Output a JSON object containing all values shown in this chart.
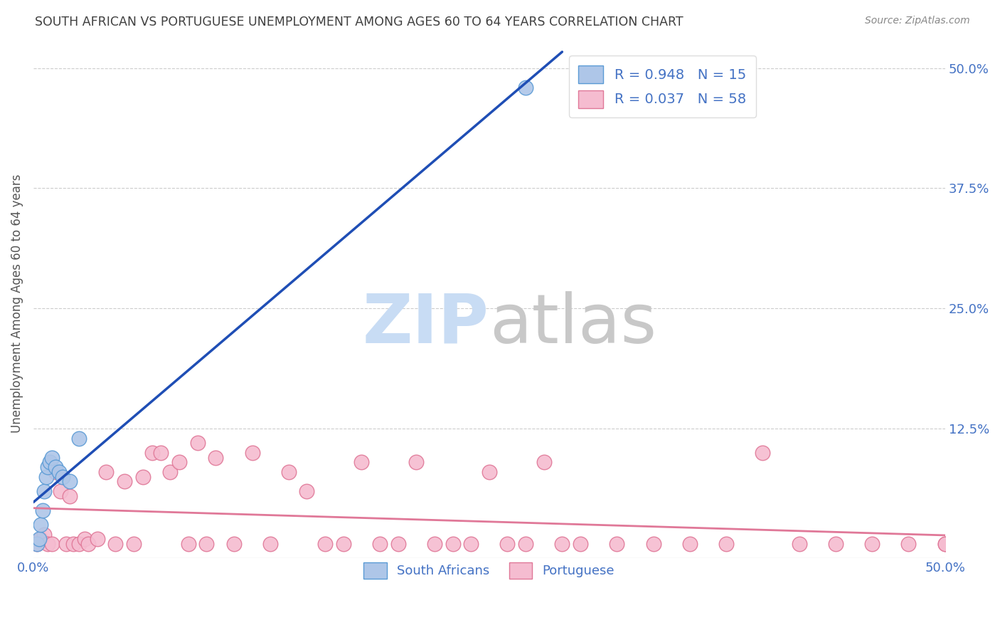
{
  "title": "SOUTH AFRICAN VS PORTUGUESE UNEMPLOYMENT AMONG AGES 60 TO 64 YEARS CORRELATION CHART",
  "source_text": "Source: ZipAtlas.com",
  "ylabel": "Unemployment Among Ages 60 to 64 years",
  "xlim": [
    0.0,
    0.5
  ],
  "ylim": [
    -0.01,
    0.52
  ],
  "xticks": [
    0.0,
    0.5
  ],
  "xticklabels": [
    "0.0%",
    "50.0%"
  ],
  "yticks_right": [
    0.0,
    0.125,
    0.25,
    0.375,
    0.5
  ],
  "yticklabels_right": [
    "",
    "12.5%",
    "25.0%",
    "37.5%",
    "50.0%"
  ],
  "grid_yticks": [
    0.125,
    0.25,
    0.375,
    0.5
  ],
  "south_african_x": [
    0.002,
    0.003,
    0.004,
    0.005,
    0.006,
    0.007,
    0.008,
    0.009,
    0.01,
    0.012,
    0.014,
    0.016,
    0.02,
    0.025,
    0.27
  ],
  "south_african_y": [
    0.005,
    0.01,
    0.025,
    0.04,
    0.06,
    0.075,
    0.085,
    0.09,
    0.095,
    0.085,
    0.08,
    0.075,
    0.07,
    0.115,
    0.48
  ],
  "portuguese_x": [
    0.002,
    0.004,
    0.006,
    0.008,
    0.01,
    0.012,
    0.015,
    0.018,
    0.02,
    0.022,
    0.025,
    0.028,
    0.03,
    0.035,
    0.04,
    0.045,
    0.05,
    0.055,
    0.06,
    0.065,
    0.07,
    0.075,
    0.08,
    0.085,
    0.09,
    0.095,
    0.1,
    0.11,
    0.12,
    0.13,
    0.14,
    0.15,
    0.16,
    0.17,
    0.18,
    0.19,
    0.2,
    0.21,
    0.22,
    0.23,
    0.24,
    0.25,
    0.26,
    0.27,
    0.28,
    0.29,
    0.3,
    0.32,
    0.34,
    0.36,
    0.38,
    0.4,
    0.42,
    0.44,
    0.46,
    0.48,
    0.5,
    0.5
  ],
  "portuguese_y": [
    0.005,
    0.01,
    0.015,
    0.005,
    0.005,
    0.08,
    0.06,
    0.005,
    0.055,
    0.005,
    0.005,
    0.01,
    0.005,
    0.01,
    0.08,
    0.005,
    0.07,
    0.005,
    0.075,
    0.1,
    0.1,
    0.08,
    0.09,
    0.005,
    0.11,
    0.005,
    0.095,
    0.005,
    0.1,
    0.005,
    0.08,
    0.06,
    0.005,
    0.005,
    0.09,
    0.005,
    0.005,
    0.09,
    0.005,
    0.005,
    0.005,
    0.08,
    0.005,
    0.005,
    0.09,
    0.005,
    0.005,
    0.005,
    0.005,
    0.005,
    0.005,
    0.1,
    0.005,
    0.005,
    0.005,
    0.005,
    0.005,
    0.005
  ],
  "sa_color": "#aec6e8",
  "sa_edge_color": "#5b9bd5",
  "pt_color": "#f5bcd0",
  "pt_edge_color": "#e07898",
  "sa_R": 0.948,
  "sa_N": 15,
  "pt_R": 0.037,
  "pt_N": 58,
  "sa_line_color": "#1f4eb5",
  "pt_line_color": "#e07898",
  "watermark_zip_color": "#c8dcf4",
  "watermark_atlas_color": "#c8c8c8",
  "background_color": "#ffffff",
  "grid_color": "#cccccc",
  "title_color": "#404040",
  "axis_label_color": "#555555",
  "tick_label_color": "#4472c4",
  "legend_text_color": "#4472c4",
  "sa_legend_label": "R = 0.948   N = 15",
  "pt_legend_label": "R = 0.037   N = 58",
  "bottom_legend_sa": "South Africans",
  "bottom_legend_pt": "Portuguese"
}
